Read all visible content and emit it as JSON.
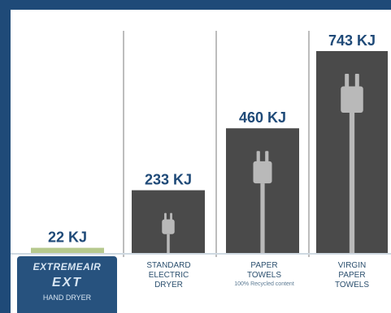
{
  "chart_data": {
    "type": "bar",
    "categories": [
      {
        "lines": [
          "EXTREMEAIR",
          "EXT",
          "HAND DRYER"
        ],
        "sub": ""
      },
      {
        "lines": [
          "STANDARD",
          "ELECTRIC",
          "DRYER"
        ],
        "sub": ""
      },
      {
        "lines": [
          "PAPER",
          "TOWELS"
        ],
        "sub": "100% Recycled content"
      },
      {
        "lines": [
          "VIRGIN",
          "PAPER",
          "TOWELS"
        ],
        "sub": ""
      }
    ],
    "values": [
      22,
      233,
      460,
      743
    ],
    "value_labels": [
      "22 KJ",
      "233 KJ",
      "460 KJ",
      "743 KJ"
    ],
    "unit": "KJ",
    "title": "",
    "xlabel": "",
    "ylabel": "",
    "ylim": [
      0,
      743
    ],
    "grid": false,
    "legend": "none"
  },
  "colors": {
    "frame": "#1f4a78",
    "bar": "#4a4a4a",
    "bar_top": "#3a3a3a",
    "first_bar": "#b6c98e",
    "plug": "#b9b9b9",
    "value_label": "#1f4a78",
    "separator": "#bdbdbd"
  }
}
